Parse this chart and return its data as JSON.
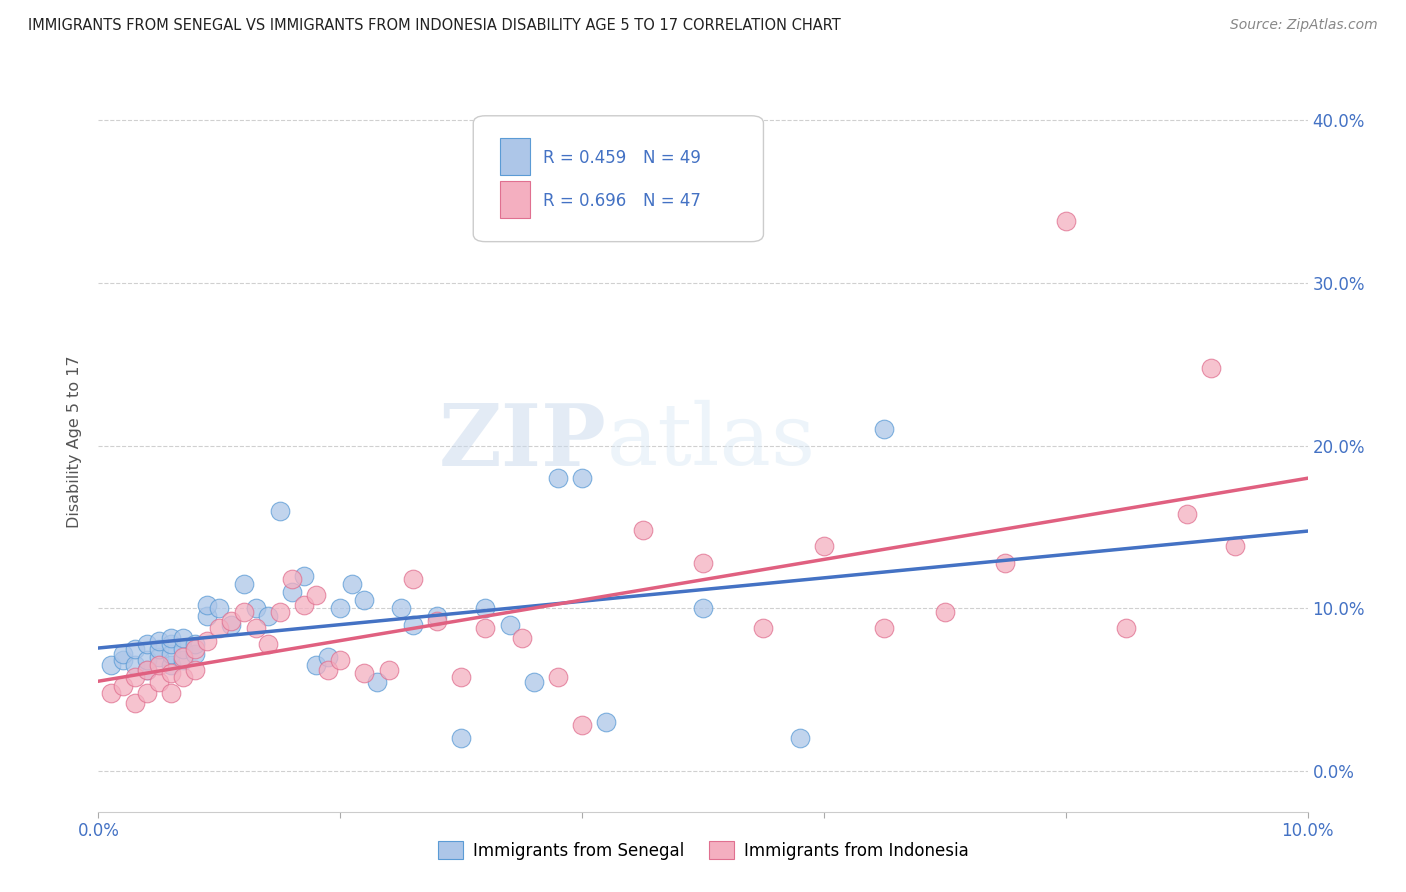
{
  "title": "IMMIGRANTS FROM SENEGAL VS IMMIGRANTS FROM INDONESIA DISABILITY AGE 5 TO 17 CORRELATION CHART",
  "source": "Source: ZipAtlas.com",
  "ylabel": "Disability Age 5 to 17",
  "xlim": [
    0.0,
    0.1
  ],
  "ylim": [
    -0.025,
    0.43
  ],
  "yticks_right": [
    0.0,
    0.1,
    0.2,
    0.3,
    0.4
  ],
  "ytick_right_labels": [
    "0.0%",
    "10.0%",
    "20.0%",
    "30.0%",
    "40.0%"
  ],
  "xtick_positions": [
    0.0,
    0.02,
    0.04,
    0.06,
    0.08,
    0.1
  ],
  "xtick_labels": [
    "0.0%",
    "",
    "",
    "",
    "",
    "10.0%"
  ],
  "watermark_text": "ZIPatlas",
  "legend_R1": "R = 0.459",
  "legend_N1": "N = 49",
  "legend_R2": "R = 0.696",
  "legend_N2": "N = 47",
  "color_senegal_fill": "#adc6e8",
  "color_senegal_edge": "#5b9bd5",
  "color_indonesia_fill": "#f4afc0",
  "color_indonesia_edge": "#e07090",
  "color_line_senegal": "#4472c4",
  "color_line_indonesia": "#e06080",
  "color_dashed": "#aaaaaa",
  "background_color": "#ffffff",
  "grid_color": "#d0d0d0",
  "tick_color": "#4472c4",
  "title_color": "#222222",
  "source_color": "#888888",
  "ylabel_color": "#555555",
  "senegal_x": [
    0.001,
    0.002,
    0.002,
    0.003,
    0.003,
    0.004,
    0.004,
    0.004,
    0.005,
    0.005,
    0.005,
    0.006,
    0.006,
    0.006,
    0.006,
    0.007,
    0.007,
    0.007,
    0.008,
    0.008,
    0.009,
    0.009,
    0.01,
    0.011,
    0.012,
    0.013,
    0.014,
    0.015,
    0.016,
    0.017,
    0.018,
    0.019,
    0.02,
    0.021,
    0.022,
    0.023,
    0.025,
    0.026,
    0.028,
    0.03,
    0.032,
    0.034,
    0.036,
    0.038,
    0.04,
    0.042,
    0.05,
    0.058,
    0.065
  ],
  "senegal_y": [
    0.065,
    0.068,
    0.072,
    0.065,
    0.075,
    0.062,
    0.068,
    0.078,
    0.07,
    0.075,
    0.08,
    0.065,
    0.072,
    0.078,
    0.082,
    0.068,
    0.075,
    0.082,
    0.072,
    0.078,
    0.095,
    0.102,
    0.1,
    0.09,
    0.115,
    0.1,
    0.095,
    0.16,
    0.11,
    0.12,
    0.065,
    0.07,
    0.1,
    0.115,
    0.105,
    0.055,
    0.1,
    0.09,
    0.095,
    0.02,
    0.1,
    0.09,
    0.055,
    0.18,
    0.18,
    0.03,
    0.1,
    0.02,
    0.21
  ],
  "indonesia_x": [
    0.001,
    0.002,
    0.003,
    0.003,
    0.004,
    0.004,
    0.005,
    0.005,
    0.006,
    0.006,
    0.007,
    0.007,
    0.008,
    0.008,
    0.009,
    0.01,
    0.011,
    0.012,
    0.013,
    0.014,
    0.015,
    0.016,
    0.017,
    0.018,
    0.019,
    0.02,
    0.022,
    0.024,
    0.026,
    0.028,
    0.03,
    0.032,
    0.035,
    0.038,
    0.04,
    0.045,
    0.05,
    0.055,
    0.06,
    0.065,
    0.07,
    0.075,
    0.08,
    0.085,
    0.09,
    0.092,
    0.094
  ],
  "indonesia_y": [
    0.048,
    0.052,
    0.042,
    0.058,
    0.048,
    0.062,
    0.055,
    0.065,
    0.048,
    0.06,
    0.058,
    0.07,
    0.062,
    0.075,
    0.08,
    0.088,
    0.092,
    0.098,
    0.088,
    0.078,
    0.098,
    0.118,
    0.102,
    0.108,
    0.062,
    0.068,
    0.06,
    0.062,
    0.118,
    0.092,
    0.058,
    0.088,
    0.082,
    0.058,
    0.028,
    0.148,
    0.128,
    0.088,
    0.138,
    0.088,
    0.098,
    0.128,
    0.338,
    0.088,
    0.158,
    0.248,
    0.138
  ]
}
